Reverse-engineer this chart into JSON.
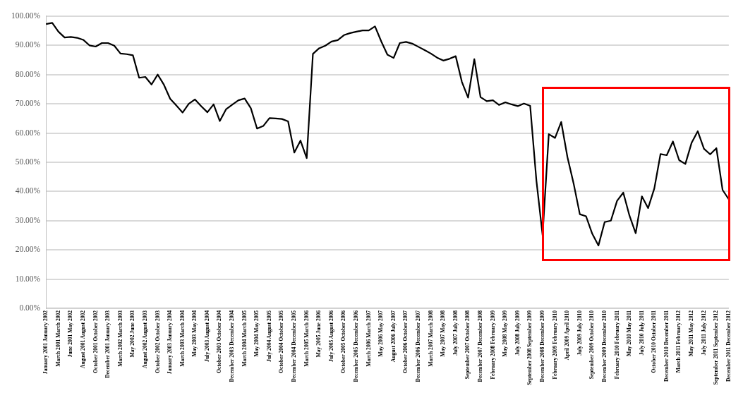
{
  "chart_data": {
    "type": "line",
    "categories": [
      "January 2001 January 2002",
      null,
      "March 2001 March 2002",
      null,
      "June 2001 May 2002",
      null,
      "August 2001 August 2002",
      null,
      "October 2001 October 2002",
      null,
      "December 2001 January 2003",
      null,
      "March 2002 March 2003",
      null,
      "May 2002 June 2003",
      null,
      "August 2002 August 2003",
      null,
      "October 2002 October 2003",
      null,
      "January 2003 January 2004",
      null,
      "March 2003 March 2004",
      null,
      "May 2003 May 2004",
      null,
      "July 2003 August 2004",
      null,
      "October 2003 October 2004",
      null,
      "December 2003 December 2004",
      null,
      "March 2004 March 2005",
      null,
      "May 2004 May 2005",
      null,
      "July 2004 August 2005",
      null,
      "October 2004 October 2005",
      null,
      "December 2004 December 2005",
      null,
      "March 2005 March 2006",
      null,
      "May 2005 June 2006",
      null,
      "July 2005 August 2006",
      null,
      "October 2005 October 2006",
      null,
      "December 2005 December 2006",
      null,
      "March 2006 March 2007",
      null,
      "May 2006 May 2007",
      null,
      "August 2006 July 2007",
      null,
      "October 2006 October 2007",
      null,
      "December 2006 December 2007",
      null,
      "March 2007 March 2008",
      null,
      "May 2007 May 2008",
      null,
      "July 2007 July 2008",
      null,
      "September 2007 October 2008",
      null,
      "December 2007 December 2008",
      null,
      "February 2008 February 2009",
      null,
      "May 2008 May 2009",
      null,
      "July 2008 July 2009",
      null,
      "September 2008 September 2009",
      null,
      "December 2008 December 2009",
      null,
      "February 2009 February 2010",
      null,
      "April 2009 April 2010",
      null,
      "July 2009 July 2010",
      null,
      "September 2009 October 2010",
      null,
      "December 2009 December 2010",
      null,
      "February 2010 February 2011",
      null,
      "May 2010 May 2011",
      null,
      "July 2010 July 2011",
      null,
      "October 2010 October 2011",
      null,
      "December 2010 December 2011",
      null,
      "March 2011 February 2012",
      null,
      "May 2011 May 2012",
      null,
      "July 2011 July 2012",
      null,
      "September 2011 September 2012",
      null,
      "December 2011 December 2012"
    ],
    "series": [
      {
        "color": "#000000",
        "values": [
          97.3,
          97.7,
          94.7,
          92.7,
          92.9,
          92.6,
          91.9,
          90.0,
          89.6,
          90.8,
          90.8,
          89.9,
          87.2,
          87.0,
          86.6,
          78.9,
          79.2,
          76.6,
          80.0,
          76.5,
          71.7,
          69.4,
          67.0,
          70.0,
          71.5,
          69.2,
          67.1,
          69.8,
          64.1,
          68.1,
          69.7,
          71.2,
          71.8,
          68.5,
          61.5,
          62.4,
          65.1,
          65.0,
          64.8,
          64.0,
          53.3,
          57.4,
          51.4,
          87.1,
          89.0,
          89.9,
          91.3,
          91.8,
          93.5,
          94.2,
          94.7,
          95.1,
          95.1,
          96.5,
          91.4,
          86.8,
          85.7,
          90.8,
          91.2,
          90.6,
          89.5,
          88.4,
          87.2,
          85.8,
          84.8,
          85.4,
          86.3,
          77.5,
          72.1,
          85.3,
          72.3,
          70.9,
          71.2,
          69.6,
          70.5,
          69.8,
          69.2,
          70.1,
          69.3,
          43.8,
          25.0,
          59.6,
          58.3,
          63.8,
          51.8,
          42.7,
          32.2,
          31.5,
          25.5,
          21.5,
          29.5,
          30.0,
          36.8,
          39.6,
          31.7,
          25.7,
          38.3,
          34.3,
          41.0,
          52.8,
          52.4,
          57.1,
          50.7,
          49.4,
          56.6,
          60.6,
          54.6,
          52.7,
          54.8,
          40.5,
          37.3
        ]
      }
    ],
    "ylim": [
      0,
      100
    ],
    "yticks": [
      {
        "value": 0,
        "label": "0.00%"
      },
      {
        "value": 10,
        "label": "10.00%"
      },
      {
        "value": 20,
        "label": "20.00%"
      },
      {
        "value": 30,
        "label": "30.00%"
      },
      {
        "value": 40,
        "label": "40.00%"
      },
      {
        "value": 50,
        "label": "50.00%"
      },
      {
        "value": 60,
        "label": "60.00%"
      },
      {
        "value": 70,
        "label": "70.00%"
      },
      {
        "value": 80,
        "label": "80.00%"
      },
      {
        "value": 90,
        "label": "90.00%"
      },
      {
        "value": 100,
        "label": "100.00%"
      }
    ],
    "grid": "y",
    "marker": "none",
    "line_style": "solid"
  }
}
